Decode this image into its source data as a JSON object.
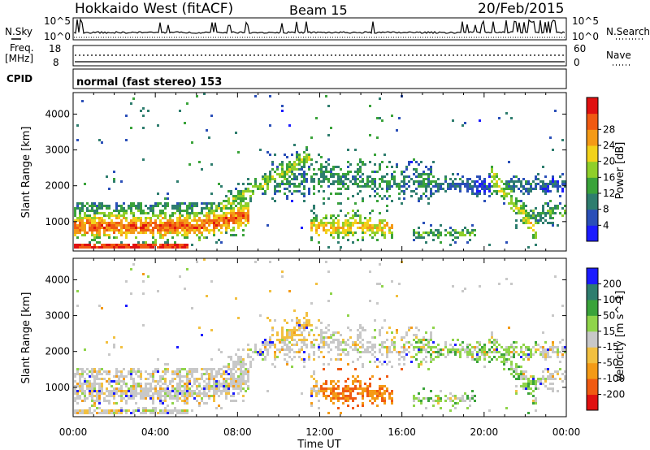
{
  "header": {
    "radar": "Hokkaido West (fitACF)",
    "beam": "Beam 15",
    "date": "20/Feb/2015"
  },
  "panels": {
    "nsky_label": "N.Sky",
    "nsearch_label": "N.Search",
    "freq_label": "Freq.",
    "freq_unit": "[MHz]",
    "nave_label": "Nave",
    "cpid_label": "CPID",
    "cpid_text": "normal (fast stereo) 153",
    "noise_top_tick": "10^5",
    "noise_bottom_tick": "10^0",
    "noise_top_tick_right": "10^5",
    "noise_bottom_tick_right": "10^0",
    "freq_ticks": [
      "18",
      "8"
    ],
    "nave_ticks": [
      "60",
      "0"
    ]
  },
  "colors": {
    "power": [
      "#1b1bff",
      "#2a4fb8",
      "#2e7d6e",
      "#3aa33a",
      "#8fcf2a",
      "#f2d21a",
      "#f49a16",
      "#f05a12",
      "#e01010"
    ],
    "velocity": [
      "#e01010",
      "#f05a12",
      "#f49a16",
      "#f2c040",
      "#c8c8c8",
      "#8fd44a",
      "#3aa33a",
      "#2e7d6e",
      "#1b1bff"
    ]
  },
  "chart_data": [
    {
      "type": "heatmap",
      "title": "Power",
      "xlabel": "Time UT",
      "ylabel": "Slant Range [km]",
      "x_ticks": [
        "00:00",
        "04:00",
        "08:00",
        "12:00",
        "16:00",
        "20:00",
        "00:00"
      ],
      "xlim": [
        0,
        24
      ],
      "ylim": [
        180,
        4600
      ],
      "y_ticks": [
        1000,
        2000,
        3000,
        4000
      ],
      "colorbar": {
        "label": "Power [dB]",
        "ticks": [
          4,
          8,
          12,
          16,
          20,
          24,
          28
        ],
        "range": [
          0,
          30
        ]
      }
    },
    {
      "type": "heatmap",
      "title": "Velocity",
      "xlabel": "Time UT",
      "ylabel": "Slant Range [km]",
      "x_ticks": [
        "00:00",
        "04:00",
        "08:00",
        "12:00",
        "16:00",
        "20:00",
        "00:00"
      ],
      "xlim": [
        0,
        24
      ],
      "ylim": [
        180,
        4600
      ],
      "y_ticks": [
        1000,
        2000,
        3000,
        4000
      ],
      "colorbar": {
        "label": "Velocity [m s^-1]",
        "ticks": [
          -200,
          -100,
          -50,
          -15,
          15,
          50,
          100,
          200
        ]
      }
    }
  ]
}
